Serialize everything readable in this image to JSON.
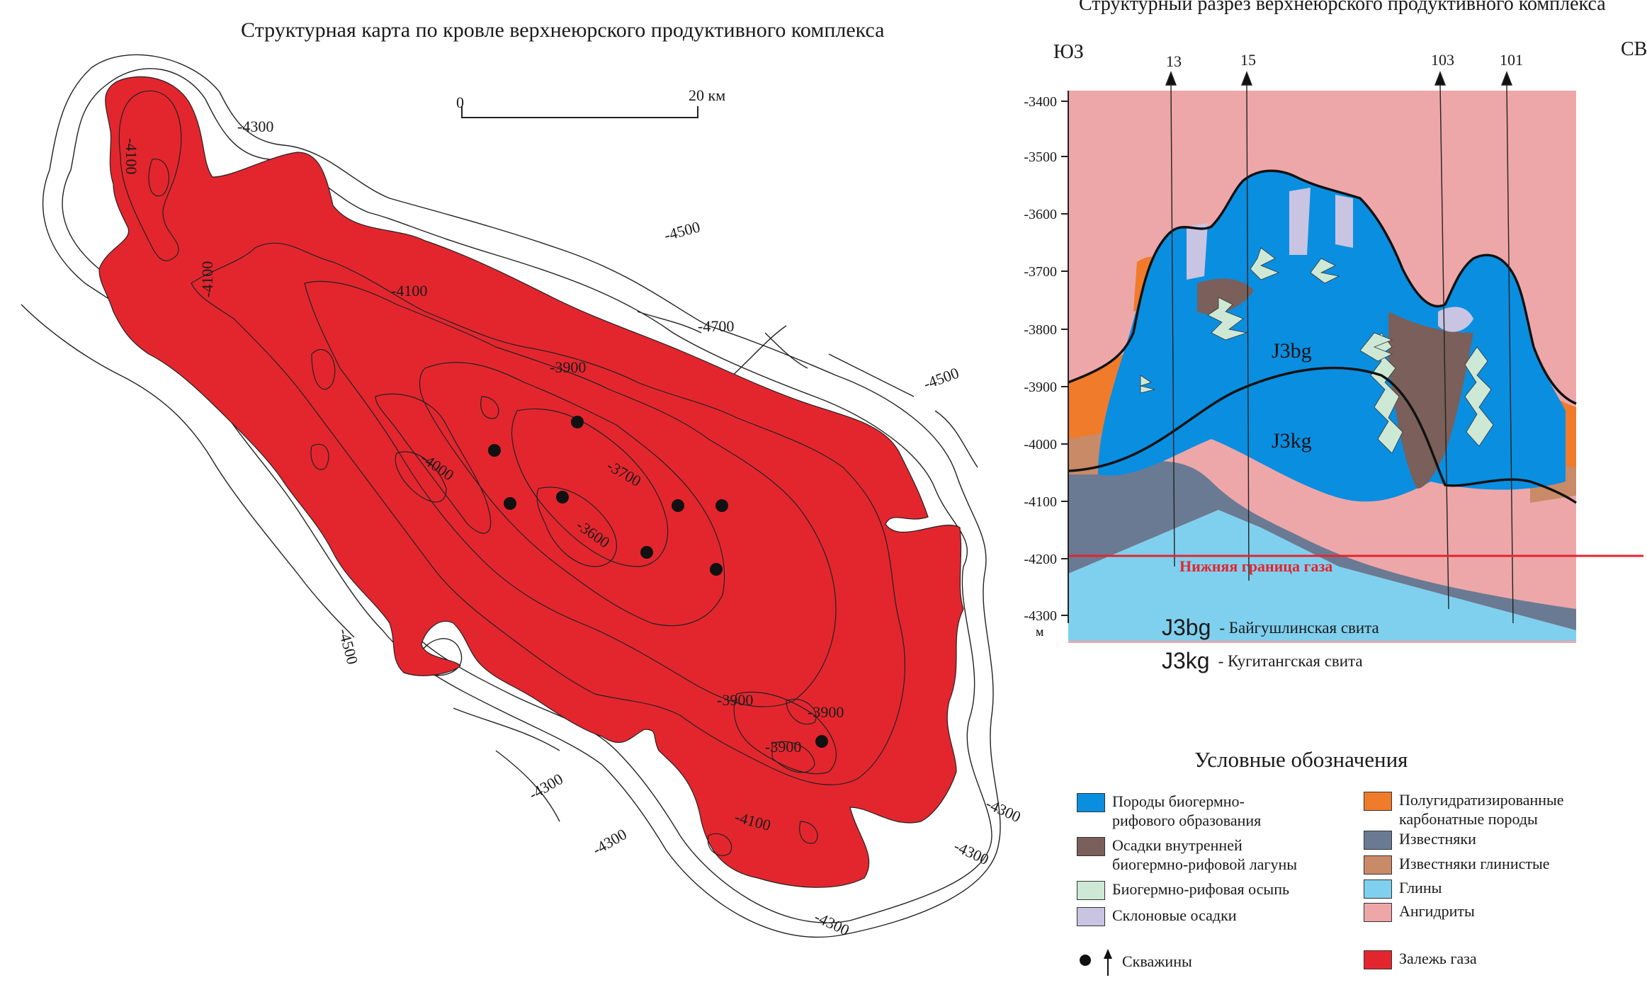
{
  "map": {
    "title": "Структурная карта по кровле верхнеюрского продуктивного комплекса",
    "scale": {
      "start": "0",
      "end": "20 км"
    },
    "contour_labels": [
      "-4100",
      "-4100",
      "-4300",
      "-4100",
      "-4500",
      "-4700",
      "-4500",
      "-3900",
      "-3700",
      "-4000",
      "-3600",
      "-3900",
      "-3900",
      "-3900",
      "-4300",
      "-4300",
      "-4100",
      "-4300",
      "-4300",
      "-4300",
      "-4500"
    ],
    "colors": {
      "gas": "#e3262e",
      "contour": "#222222"
    }
  },
  "section": {
    "title": "Структурный разрез верхнеюрского продуктивного комплекса",
    "left_dir": "ЮЗ",
    "right_dir": "СВ",
    "wells": [
      "13",
      "15",
      "103",
      "101"
    ],
    "depth_ticks": [
      "-3400",
      "-3500",
      "-3600",
      "-3700",
      "-3800",
      "-3900",
      "-4000",
      "-4100",
      "-4200",
      "-4300"
    ],
    "depth_unit": "м",
    "gas_boundary": "Нижняя граница газа",
    "formation_labels": [
      "J3bg",
      "J3kg"
    ],
    "formations": [
      {
        "code": "J3bg",
        "name": "- Байгушлинская свита"
      },
      {
        "code": "J3kg",
        "name": "- Кугитангская свита"
      }
    ]
  },
  "legend": {
    "title": "Условные обозначения",
    "items": [
      {
        "color": "#0a8ee0",
        "label": "Породы биогермно-\nрифового образования"
      },
      {
        "color": "#7a5f5a",
        "label": "Осадки внутренней\nбиогермно-рифовой лагуны"
      },
      {
        "color": "#cde9d6",
        "label": "Биогермно-рифовая осыпь"
      },
      {
        "color": "#c9c4e2",
        "label": "Склоновые осадки"
      },
      {
        "color": "#f07b2a",
        "label": "Полугидратизированные\nкарбонатные породы"
      },
      {
        "color": "#6a7a93",
        "label": "Известняки"
      },
      {
        "color": "#c98a67",
        "label": "Известняки глинистые"
      },
      {
        "color": "#7fd0ee",
        "label": "Глины"
      },
      {
        "color": "#eda7a9",
        "label": "Ангидриты"
      }
    ],
    "wells_label": "Скважины",
    "gas_label": "Залежь газа",
    "gas_color": "#e3262e"
  }
}
